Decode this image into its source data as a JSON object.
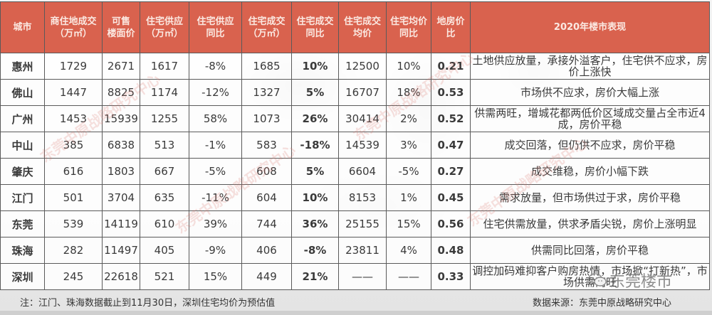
{
  "table": {
    "headers": [
      {
        "line1": "城市",
        "line2": ""
      },
      {
        "line1": "商住地成交",
        "line2": "（万㎡）"
      },
      {
        "line1": "可售",
        "line2": "楼面价"
      },
      {
        "line1": "住宅供应",
        "line2": "（万㎡）"
      },
      {
        "line1": "住宅供应",
        "line2": "同比"
      },
      {
        "line1": "住宅成交",
        "line2": "（万㎡）"
      },
      {
        "line1": "住宅成交",
        "line2": "同比"
      },
      {
        "line1": "住宅成交",
        "line2": "均价"
      },
      {
        "line1": "住宅均价",
        "line2": "同比"
      },
      {
        "line1": "地房价",
        "line2": "比"
      },
      {
        "line1": "2020年楼市表现",
        "line2": ""
      }
    ],
    "rows": [
      {
        "city": "惠州",
        "land_deal": "1729",
        "floor_price": "2671",
        "supply": "1617",
        "supply_yoy": "-8%",
        "deal": "1685",
        "deal_yoy": "10%",
        "avg_price": "12500",
        "price_yoy": "10%",
        "ratio": "0.21",
        "desc": "土地供应放量，承接外溢客户，住宅供不应求，房价上涨快"
      },
      {
        "city": "佛山",
        "land_deal": "1447",
        "floor_price": "8825",
        "supply": "1174",
        "supply_yoy": "-12%",
        "deal": "1327",
        "deal_yoy": "5%",
        "avg_price": "16707",
        "price_yoy": "18%",
        "ratio": "0.53",
        "desc": "市场供不应求，房价大幅上涨"
      },
      {
        "city": "广州",
        "land_deal": "1453",
        "floor_price": "15939",
        "supply": "1255",
        "supply_yoy": "58%",
        "deal": "1073",
        "deal_yoy": "26%",
        "avg_price": "30414",
        "price_yoy": "2%",
        "ratio": "0.52",
        "desc": "供需两旺，增城花都两低价区域成交量占全市近4成，房价平稳"
      },
      {
        "city": "中山",
        "land_deal": "385",
        "floor_price": "6838",
        "supply": "513",
        "supply_yoy": "-1%",
        "deal": "583",
        "deal_yoy": "-18%",
        "avg_price": "14539",
        "price_yoy": "3%",
        "ratio": "0.47",
        "desc": "成交回落，但仍供不应求，房价平稳"
      },
      {
        "city": "肇庆",
        "land_deal": "616",
        "floor_price": "1803",
        "supply": "667",
        "supply_yoy": "-5%",
        "deal": "608",
        "deal_yoy": "5%",
        "avg_price": "6604",
        "price_yoy": "-5%",
        "ratio": "0.27",
        "desc": "成交维稳，房价小幅下跌"
      },
      {
        "city": "江门",
        "land_deal": "501",
        "floor_price": "3704",
        "supply": "635",
        "supply_yoy": "-11%",
        "deal": "604",
        "deal_yoy": "10%",
        "avg_price": "8153",
        "price_yoy": "1%",
        "ratio": "0.45",
        "desc": "需求放量，但市场供过于求，房价平稳"
      },
      {
        "city": "东莞",
        "land_deal": "539",
        "floor_price": "14119",
        "supply": "610",
        "supply_yoy": "39%",
        "deal": "744",
        "deal_yoy": "36%",
        "avg_price": "25155",
        "price_yoy": "15%",
        "ratio": "0.56",
        "desc": "住宅供需放量，供求矛盾尖锐，房价上涨明显"
      },
      {
        "city": "珠海",
        "land_deal": "282",
        "floor_price": "11497",
        "supply": "405",
        "supply_yoy": "-9%",
        "deal": "406",
        "deal_yoy": "-8%",
        "avg_price": "23811",
        "price_yoy": "4%",
        "ratio": "0.48",
        "desc": "供需同比回落，房价平稳"
      },
      {
        "city": "深圳",
        "land_deal": "245",
        "floor_price": "22618",
        "supply": "521",
        "supply_yoy": "15%",
        "deal": "449",
        "deal_yoy": "21%",
        "avg_price": "——",
        "price_yoy": "——",
        "ratio": "0.33",
        "desc": "调控加码难抑客户购房热情，市场掀“打新热”，市场供需两旺"
      }
    ]
  },
  "footer": {
    "note": "注：江门、珠海数据截止到11月30日，深圳住宅均价为预估值",
    "source": "数据来源：东莞中原战略研究中心",
    "brand": "东莞楼市",
    "brand_icon": "wechat-icon"
  },
  "watermark": "东莞中原战略研究中心",
  "colors": {
    "header_bg": "#d9624e",
    "positive": "#d9534f",
    "negative": "#3cb371",
    "deal_column_bg": "#f4d6ce"
  }
}
